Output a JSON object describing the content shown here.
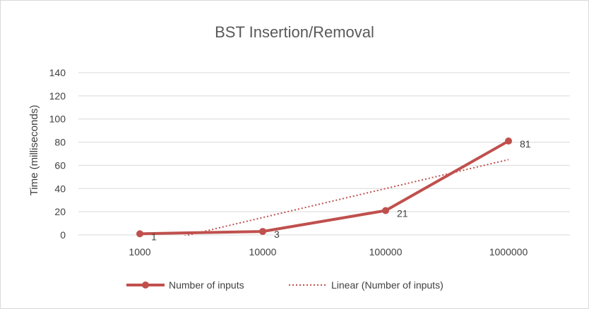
{
  "chart_data": {
    "type": "line",
    "title": "BST  Insertion/Removal",
    "xlabel": "",
    "ylabel": "Time (milliseconds)",
    "categories": [
      "1000",
      "10000",
      "100000",
      "1000000"
    ],
    "ylim": [
      0,
      140
    ],
    "yticks": [
      0,
      20,
      40,
      60,
      80,
      100,
      120,
      140
    ],
    "grid": true,
    "legend_position": "bottom",
    "series": [
      {
        "name": "Number of inputs",
        "values": [
          1,
          3,
          21,
          81
        ],
        "data_labels": [
          "1",
          "3",
          "21",
          "81"
        ],
        "color": "#c0504d"
      }
    ],
    "trendline": {
      "name": "Linear (Number of inputs)",
      "type": "linear",
      "values": [
        -10,
        15,
        40,
        65
      ],
      "color": "#c0504d"
    }
  }
}
